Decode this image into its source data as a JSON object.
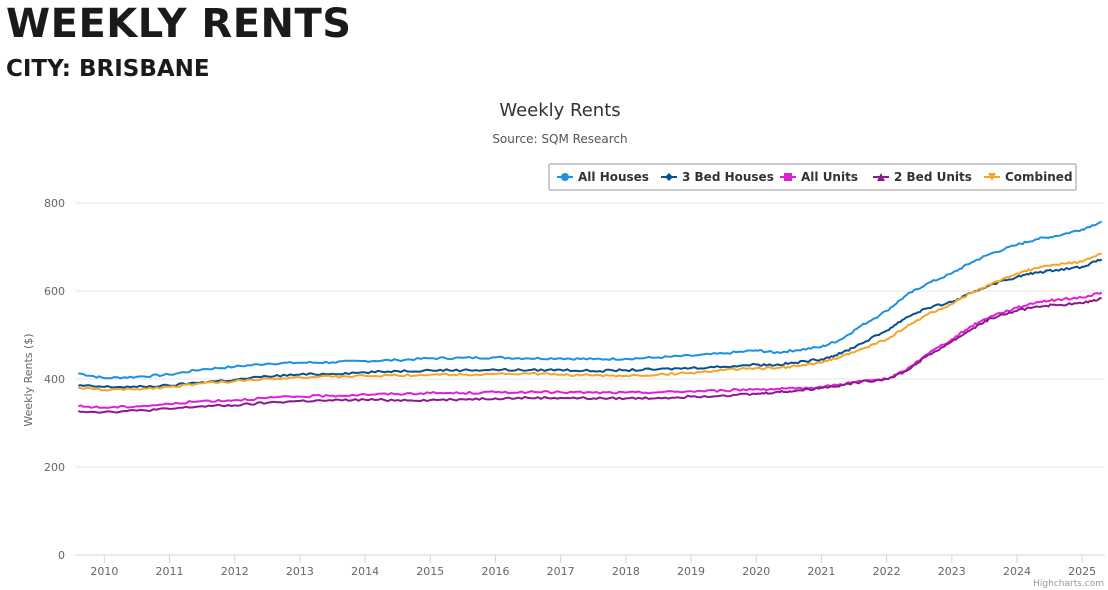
{
  "page": {
    "title": "WEEKLY RENTS",
    "subtitle": "CITY: BRISBANE"
  },
  "chart_data": {
    "type": "line",
    "title": "Weekly Rents",
    "subtitle": "Source: SQM Research",
    "ylabel": "Weekly Rents ($)",
    "xlabel": "",
    "xlim": [
      2009.55,
      2025.35
    ],
    "ylim": [
      0,
      800
    ],
    "x_ticks": [
      2010,
      2011,
      2012,
      2013,
      2014,
      2015,
      2016,
      2017,
      2018,
      2019,
      2020,
      2021,
      2022,
      2023,
      2024,
      2025
    ],
    "y_ticks": [
      0,
      200,
      400,
      600,
      800
    ],
    "grid": "horizontal",
    "legend_position": "top-right",
    "credit": "Highcharts.com",
    "series": [
      {
        "name": "All Houses",
        "color": "#1e90e0",
        "marker": "circle",
        "points": [
          [
            2009.6,
            413
          ],
          [
            2010.0,
            402
          ],
          [
            2010.5,
            405
          ],
          [
            2011.0,
            410
          ],
          [
            2011.5,
            422
          ],
          [
            2012.0,
            428
          ],
          [
            2012.5,
            435
          ],
          [
            2013.0,
            437
          ],
          [
            2013.5,
            438
          ],
          [
            2014.0,
            441
          ],
          [
            2014.5,
            443
          ],
          [
            2015.0,
            447
          ],
          [
            2015.5,
            448
          ],
          [
            2016.0,
            449
          ],
          [
            2016.5,
            447
          ],
          [
            2017.0,
            447
          ],
          [
            2017.5,
            445
          ],
          [
            2018.0,
            446
          ],
          [
            2018.5,
            449
          ],
          [
            2019.0,
            453
          ],
          [
            2019.5,
            458
          ],
          [
            2020.0,
            465
          ],
          [
            2020.3,
            460
          ],
          [
            2020.6,
            465
          ],
          [
            2021.0,
            473
          ],
          [
            2021.3,
            490
          ],
          [
            2021.6,
            520
          ],
          [
            2022.0,
            555
          ],
          [
            2022.3,
            590
          ],
          [
            2022.6,
            615
          ],
          [
            2023.0,
            640
          ],
          [
            2023.3,
            665
          ],
          [
            2023.6,
            685
          ],
          [
            2024.0,
            705
          ],
          [
            2024.3,
            718
          ],
          [
            2024.6,
            725
          ],
          [
            2025.0,
            740
          ],
          [
            2025.3,
            758
          ]
        ]
      },
      {
        "name": "3 Bed Houses",
        "color": "#0b4f8c",
        "marker": "diamond",
        "points": [
          [
            2009.6,
            385
          ],
          [
            2010.0,
            382
          ],
          [
            2010.5,
            382
          ],
          [
            2011.0,
            385
          ],
          [
            2011.5,
            393
          ],
          [
            2012.0,
            398
          ],
          [
            2012.5,
            406
          ],
          [
            2013.0,
            410
          ],
          [
            2013.5,
            412
          ],
          [
            2014.0,
            415
          ],
          [
            2014.5,
            418
          ],
          [
            2015.0,
            420
          ],
          [
            2015.5,
            420
          ],
          [
            2016.0,
            421
          ],
          [
            2016.5,
            420
          ],
          [
            2017.0,
            421
          ],
          [
            2017.5,
            418
          ],
          [
            2018.0,
            420
          ],
          [
            2018.5,
            422
          ],
          [
            2019.0,
            425
          ],
          [
            2019.5,
            428
          ],
          [
            2020.0,
            433
          ],
          [
            2020.3,
            432
          ],
          [
            2020.6,
            437
          ],
          [
            2021.0,
            445
          ],
          [
            2021.3,
            458
          ],
          [
            2021.6,
            480
          ],
          [
            2022.0,
            510
          ],
          [
            2022.3,
            540
          ],
          [
            2022.6,
            560
          ],
          [
            2023.0,
            575
          ],
          [
            2023.3,
            595
          ],
          [
            2023.6,
            615
          ],
          [
            2024.0,
            632
          ],
          [
            2024.3,
            642
          ],
          [
            2024.6,
            648
          ],
          [
            2025.0,
            655
          ],
          [
            2025.3,
            672
          ]
        ]
      },
      {
        "name": "All Units",
        "color": "#e020d8",
        "marker": "square",
        "points": [
          [
            2009.6,
            338
          ],
          [
            2010.0,
            335
          ],
          [
            2010.5,
            338
          ],
          [
            2011.0,
            343
          ],
          [
            2011.5,
            350
          ],
          [
            2012.0,
            352
          ],
          [
            2012.5,
            357
          ],
          [
            2013.0,
            360
          ],
          [
            2013.5,
            362
          ],
          [
            2014.0,
            365
          ],
          [
            2014.5,
            366
          ],
          [
            2015.0,
            368
          ],
          [
            2015.5,
            368
          ],
          [
            2016.0,
            370
          ],
          [
            2016.5,
            370
          ],
          [
            2017.0,
            370
          ],
          [
            2017.5,
            369
          ],
          [
            2018.0,
            369
          ],
          [
            2018.5,
            370
          ],
          [
            2019.0,
            372
          ],
          [
            2019.5,
            374
          ],
          [
            2020.0,
            377
          ],
          [
            2020.3,
            377
          ],
          [
            2020.6,
            378
          ],
          [
            2021.0,
            382
          ],
          [
            2021.3,
            388
          ],
          [
            2021.6,
            395
          ],
          [
            2022.0,
            400
          ],
          [
            2022.3,
            420
          ],
          [
            2022.6,
            455
          ],
          [
            2023.0,
            490
          ],
          [
            2023.3,
            520
          ],
          [
            2023.6,
            543
          ],
          [
            2024.0,
            562
          ],
          [
            2024.3,
            575
          ],
          [
            2024.6,
            580
          ],
          [
            2025.0,
            585
          ],
          [
            2025.3,
            597
          ]
        ]
      },
      {
        "name": "2 Bed Units",
        "color": "#8b1a8b",
        "marker": "triangle",
        "points": [
          [
            2009.6,
            327
          ],
          [
            2010.0,
            325
          ],
          [
            2010.5,
            328
          ],
          [
            2011.0,
            332
          ],
          [
            2011.5,
            338
          ],
          [
            2012.0,
            340
          ],
          [
            2012.5,
            346
          ],
          [
            2013.0,
            350
          ],
          [
            2013.5,
            351
          ],
          [
            2014.0,
            353
          ],
          [
            2014.5,
            352
          ],
          [
            2015.0,
            352
          ],
          [
            2015.5,
            354
          ],
          [
            2016.0,
            356
          ],
          [
            2016.5,
            357
          ],
          [
            2017.0,
            357
          ],
          [
            2017.5,
            356
          ],
          [
            2018.0,
            356
          ],
          [
            2018.5,
            357
          ],
          [
            2019.0,
            360
          ],
          [
            2019.5,
            363
          ],
          [
            2020.0,
            366
          ],
          [
            2020.3,
            370
          ],
          [
            2020.6,
            373
          ],
          [
            2021.0,
            380
          ],
          [
            2021.3,
            386
          ],
          [
            2021.6,
            393
          ],
          [
            2022.0,
            400
          ],
          [
            2022.3,
            418
          ],
          [
            2022.6,
            450
          ],
          [
            2023.0,
            485
          ],
          [
            2023.3,
            513
          ],
          [
            2023.6,
            538
          ],
          [
            2024.0,
            555
          ],
          [
            2024.3,
            565
          ],
          [
            2024.6,
            568
          ],
          [
            2025.0,
            572
          ],
          [
            2025.3,
            583
          ]
        ]
      },
      {
        "name": "Combined",
        "color": "#f5a623",
        "marker": "triangle-down",
        "points": [
          [
            2009.6,
            380
          ],
          [
            2010.0,
            375
          ],
          [
            2010.5,
            377
          ],
          [
            2011.0,
            382
          ],
          [
            2011.5,
            390
          ],
          [
            2012.0,
            395
          ],
          [
            2012.5,
            401
          ],
          [
            2013.0,
            404
          ],
          [
            2013.5,
            405
          ],
          [
            2014.0,
            407
          ],
          [
            2014.5,
            408
          ],
          [
            2015.0,
            410
          ],
          [
            2015.5,
            410
          ],
          [
            2016.0,
            412
          ],
          [
            2016.5,
            412
          ],
          [
            2017.0,
            410
          ],
          [
            2017.5,
            408
          ],
          [
            2018.0,
            407
          ],
          [
            2018.5,
            410
          ],
          [
            2019.0,
            414
          ],
          [
            2019.5,
            420
          ],
          [
            2020.0,
            425
          ],
          [
            2020.3,
            424
          ],
          [
            2020.6,
            430
          ],
          [
            2021.0,
            437
          ],
          [
            2021.3,
            450
          ],
          [
            2021.6,
            468
          ],
          [
            2022.0,
            490
          ],
          [
            2022.3,
            518
          ],
          [
            2022.6,
            545
          ],
          [
            2023.0,
            570
          ],
          [
            2023.3,
            595
          ],
          [
            2023.6,
            615
          ],
          [
            2024.0,
            640
          ],
          [
            2024.3,
            652
          ],
          [
            2024.6,
            660
          ],
          [
            2025.0,
            667
          ],
          [
            2025.3,
            685
          ]
        ]
      }
    ]
  }
}
